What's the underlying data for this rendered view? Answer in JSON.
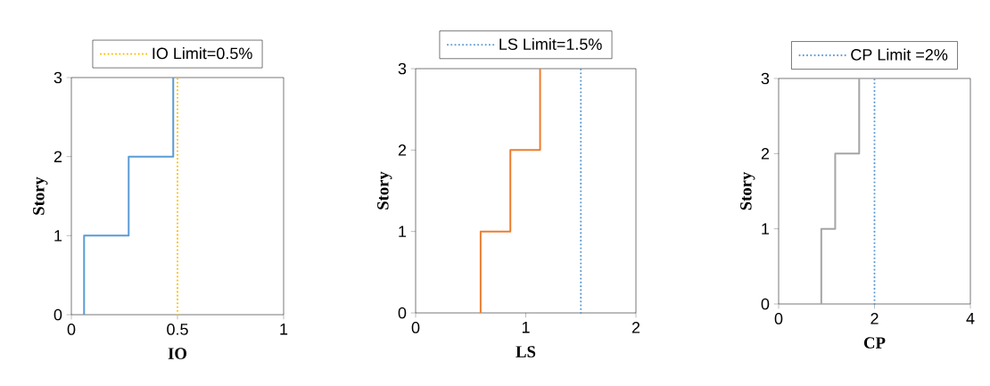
{
  "chart_data": [
    {
      "type": "line",
      "xlabel": "IO",
      "ylabel": "Story",
      "xlim": [
        0,
        1
      ],
      "xticks": [
        0,
        0.5,
        1
      ],
      "ylim": [
        0,
        3
      ],
      "yticks": [
        0,
        1,
        2,
        3
      ],
      "legend": "top",
      "series": [
        {
          "color": "#5b9bd5",
          "x": [
            0.06,
            0.06,
            0.27,
            0.27,
            0.48,
            0.48
          ],
          "values": [
            0,
            1,
            1,
            2,
            2,
            3
          ]
        },
        {
          "name": "IO Limit=0.5%",
          "color": "#ffc000",
          "line_style": "dotted",
          "x": [
            0.5,
            0.5
          ],
          "values": [
            0,
            3
          ]
        }
      ]
    },
    {
      "type": "line",
      "xlabel": "LS",
      "ylabel": "Story",
      "xlim": [
        0,
        2
      ],
      "xticks": [
        0,
        1,
        2
      ],
      "ylim": [
        0,
        3
      ],
      "yticks": [
        0,
        1,
        2,
        3
      ],
      "legend": "top",
      "series": [
        {
          "color": "#ed7d31",
          "x": [
            0.59,
            0.59,
            0.86,
            0.86,
            1.13,
            1.13
          ],
          "values": [
            0,
            1,
            1,
            2,
            2,
            3
          ]
        },
        {
          "name": "LS Limit=1.5%",
          "color": "#5b9bd5",
          "line_style": "dotted",
          "x": [
            1.5,
            1.5
          ],
          "values": [
            0,
            3
          ]
        }
      ]
    },
    {
      "type": "line",
      "xlabel": "CP",
      "ylabel": "Story",
      "xlim": [
        0,
        4
      ],
      "xticks": [
        0,
        2,
        4
      ],
      "ylim": [
        0,
        3
      ],
      "yticks": [
        0,
        1,
        2,
        3
      ],
      "legend": "top",
      "series": [
        {
          "color": "#a5a5a5",
          "x": [
            0.89,
            0.89,
            1.18,
            1.18,
            1.68,
            1.68
          ],
          "values": [
            0,
            1,
            1,
            2,
            2,
            3
          ]
        },
        {
          "name": "CP Limit =2%",
          "color": "#5b9bd5",
          "line_style": "dotted",
          "x": [
            2,
            2
          ],
          "values": [
            0,
            3
          ]
        }
      ]
    }
  ]
}
